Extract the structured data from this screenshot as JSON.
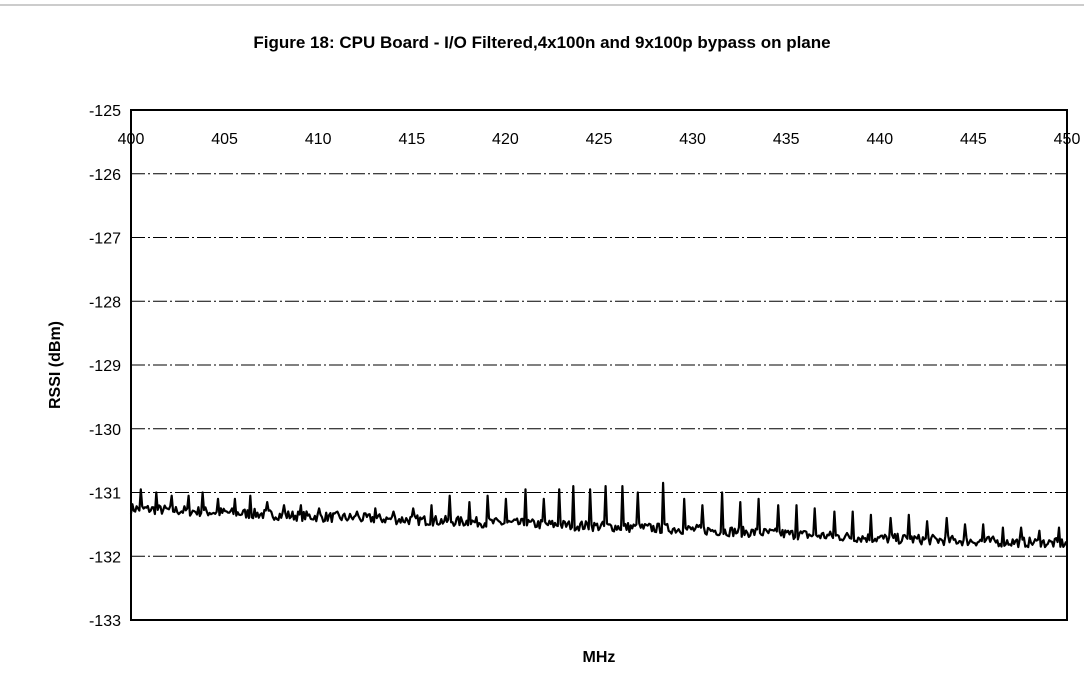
{
  "chart_data": {
    "type": "line",
    "title": "Figure 18: CPU Board - I/O Filtered,4x100n and 9x100p bypass on plane",
    "xlabel": "MHz",
    "ylabel": "RSSI (dBm)",
    "xlim": [
      400,
      450
    ],
    "ylim": [
      -133,
      -125
    ],
    "x_ticks": [
      400,
      405,
      410,
      415,
      420,
      425,
      430,
      435,
      440,
      445,
      450
    ],
    "y_ticks": [
      -125,
      -126,
      -127,
      -128,
      -129,
      -130,
      -131,
      -132,
      -133
    ],
    "x_tick_position": "top",
    "grid": "horizontal",
    "legend": "none",
    "series": [
      {
        "color": "#000000",
        "baseline": {
          "x": [
            400,
            410,
            420,
            430,
            440,
            450
          ],
          "y": [
            -131.25,
            -131.38,
            -131.48,
            -131.58,
            -131.72,
            -131.8
          ]
        },
        "spikes": [
          {
            "x": 400.5,
            "y": -130.95
          },
          {
            "x": 401.3,
            "y": -131.0
          },
          {
            "x": 402.1,
            "y": -131.05
          },
          {
            "x": 403.0,
            "y": -131.05
          },
          {
            "x": 403.8,
            "y": -131.0
          },
          {
            "x": 404.6,
            "y": -131.1
          },
          {
            "x": 405.5,
            "y": -131.1
          },
          {
            "x": 406.3,
            "y": -131.05
          },
          {
            "x": 407.2,
            "y": -131.15
          },
          {
            "x": 408.1,
            "y": -131.2
          },
          {
            "x": 409.0,
            "y": -131.2
          },
          {
            "x": 410.0,
            "y": -131.25
          },
          {
            "x": 411.0,
            "y": -131.3
          },
          {
            "x": 412.0,
            "y": -131.3
          },
          {
            "x": 413.0,
            "y": -131.25
          },
          {
            "x": 414.0,
            "y": -131.3
          },
          {
            "x": 415.0,
            "y": -131.25
          },
          {
            "x": 416.0,
            "y": -131.2
          },
          {
            "x": 417.0,
            "y": -131.05
          },
          {
            "x": 418.0,
            "y": -131.15
          },
          {
            "x": 419.0,
            "y": -131.05
          },
          {
            "x": 420.0,
            "y": -131.1
          },
          {
            "x": 421.0,
            "y": -130.95
          },
          {
            "x": 422.0,
            "y": -131.1
          },
          {
            "x": 422.8,
            "y": -130.95
          },
          {
            "x": 423.6,
            "y": -130.9
          },
          {
            "x": 424.5,
            "y": -130.95
          },
          {
            "x": 425.3,
            "y": -130.9
          },
          {
            "x": 426.2,
            "y": -130.9
          },
          {
            "x": 427.0,
            "y": -131.0
          },
          {
            "x": 428.4,
            "y": -130.85
          },
          {
            "x": 429.5,
            "y": -131.1
          },
          {
            "x": 430.5,
            "y": -131.2
          },
          {
            "x": 431.5,
            "y": -131.0
          },
          {
            "x": 432.5,
            "y": -131.15
          },
          {
            "x": 433.5,
            "y": -131.1
          },
          {
            "x": 434.5,
            "y": -131.2
          },
          {
            "x": 435.5,
            "y": -131.2
          },
          {
            "x": 436.5,
            "y": -131.25
          },
          {
            "x": 437.5,
            "y": -131.3
          },
          {
            "x": 438.5,
            "y": -131.3
          },
          {
            "x": 439.5,
            "y": -131.35
          },
          {
            "x": 440.5,
            "y": -131.4
          },
          {
            "x": 441.5,
            "y": -131.35
          },
          {
            "x": 442.5,
            "y": -131.45
          },
          {
            "x": 443.5,
            "y": -131.4
          },
          {
            "x": 444.5,
            "y": -131.5
          },
          {
            "x": 445.5,
            "y": -131.5
          },
          {
            "x": 446.5,
            "y": -131.55
          },
          {
            "x": 447.5,
            "y": -131.55
          },
          {
            "x": 448.5,
            "y": -131.6
          },
          {
            "x": 449.5,
            "y": -131.55
          }
        ]
      }
    ]
  }
}
